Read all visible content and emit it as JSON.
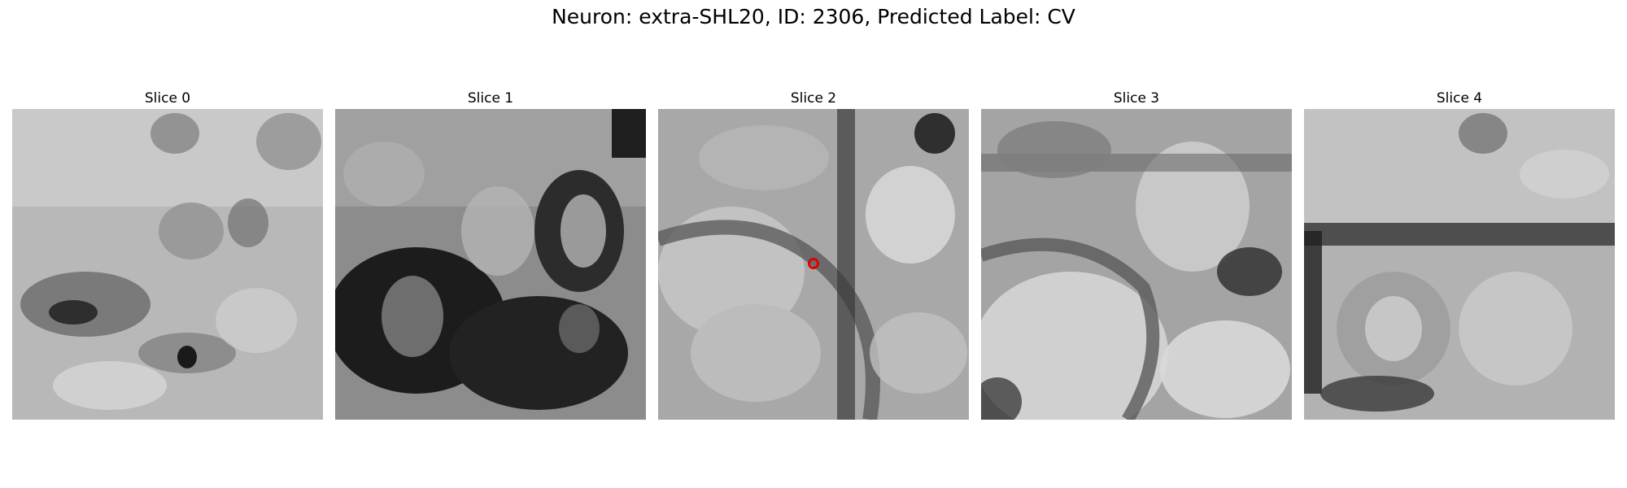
{
  "figure": {
    "title": "Neuron: extra-SHL20, ID: 2306, Predicted Label: CV"
  },
  "slices": [
    {
      "label": "Slice 0"
    },
    {
      "label": "Slice 1"
    },
    {
      "label": "Slice 2"
    },
    {
      "label": "Slice 3"
    },
    {
      "label": "Slice 4"
    }
  ],
  "marker": {
    "slice": 2,
    "color": "#e00000"
  }
}
